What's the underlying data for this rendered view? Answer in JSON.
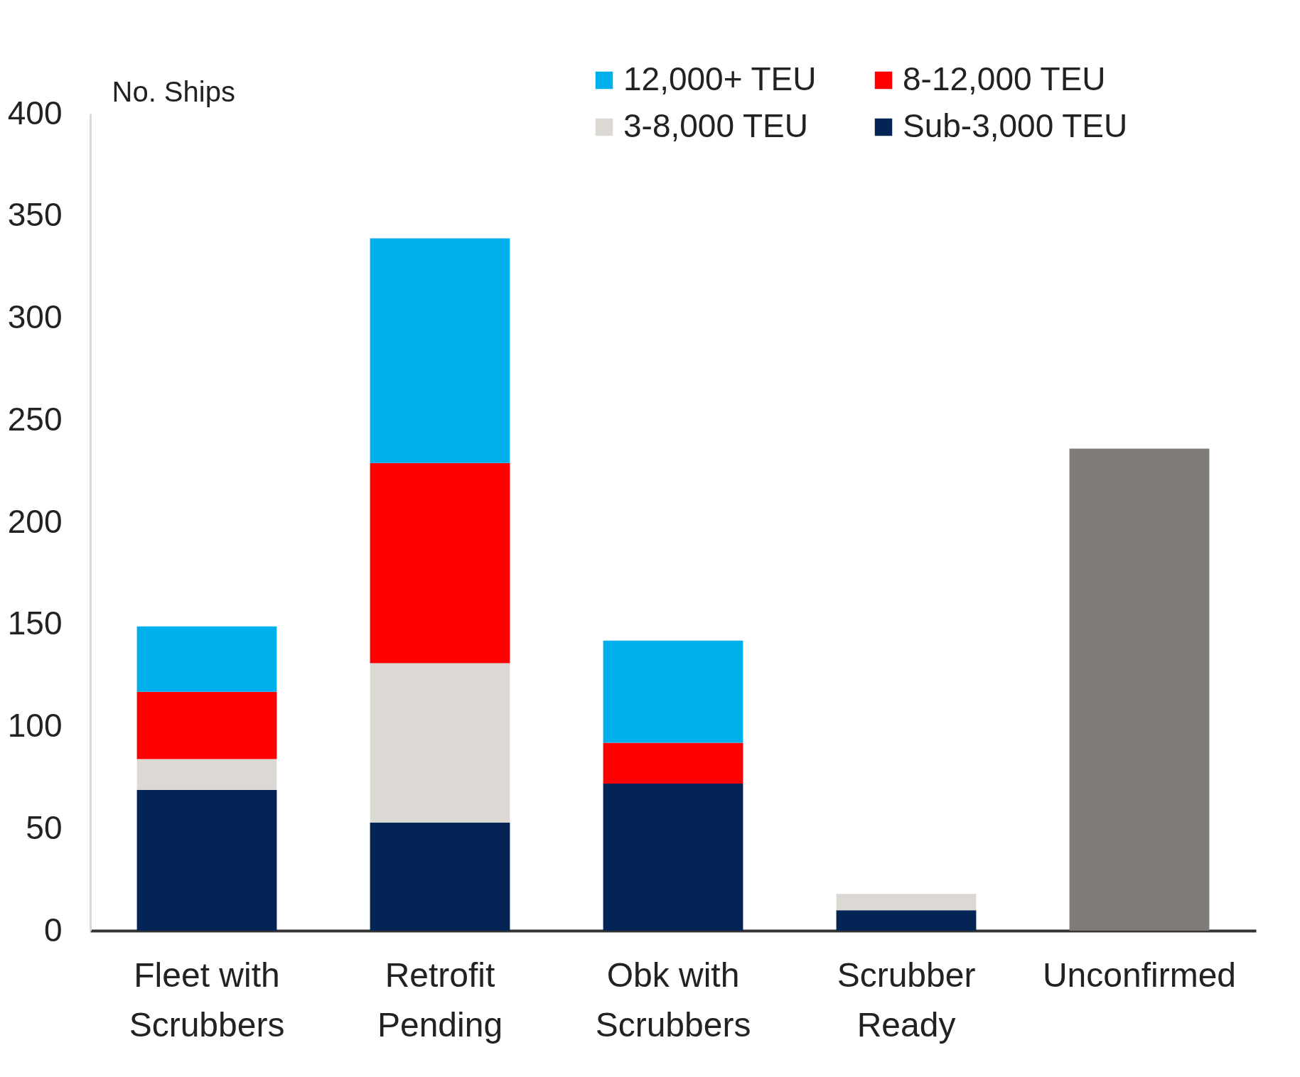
{
  "chart_data": {
    "type": "bar",
    "stacked": true,
    "ylabel": "No. Ships",
    "categories": [
      "Fleet with Scrubbers",
      "Retrofit Pending",
      "Obk with Scrubbers",
      "Scrubber Ready",
      "Unconfirmed"
    ],
    "series": [
      {
        "name": "Sub-3,000 TEU",
        "color": "#042455",
        "values": [
          69,
          53,
          72,
          10,
          0
        ]
      },
      {
        "name": "3-8,000 TEU",
        "color": "#dcd9d5",
        "values": [
          15,
          78,
          0,
          8,
          0
        ]
      },
      {
        "name": "8-12,000 TEU",
        "color": "#ff0000",
        "values": [
          33,
          98,
          20,
          0,
          0
        ]
      },
      {
        "name": "12,000+ TEU",
        "color": "#00b0ec",
        "values": [
          32,
          110,
          50,
          0,
          0
        ]
      },
      {
        "color": "#7f7b76",
        "values": [
          0,
          0,
          0,
          0,
          236
        ]
      }
    ],
    "ylim": [
      0,
      400
    ],
    "yticks": [
      0,
      50,
      100,
      150,
      200,
      250,
      300,
      350,
      400
    ],
    "grid": false,
    "legend": "top right"
  }
}
